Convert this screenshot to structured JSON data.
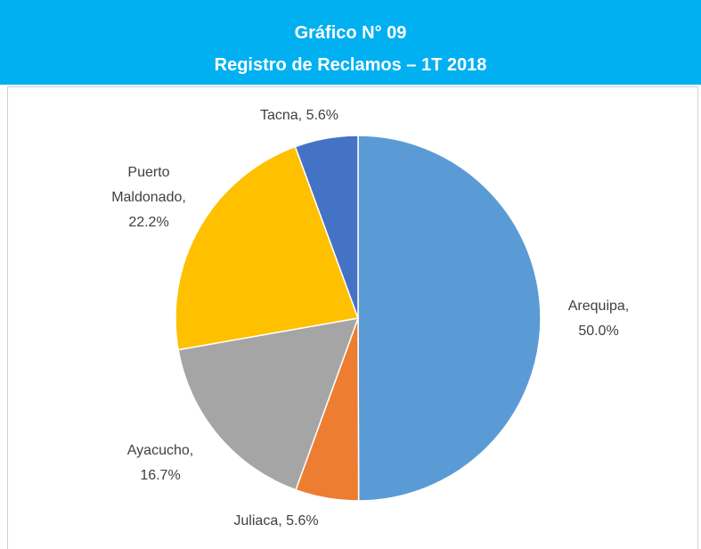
{
  "chart_data": {
    "type": "pie",
    "title": "Gráfico N° 09",
    "subtitle": "Registro de Reclamos – 1T 2018",
    "categories": [
      "Arequipa",
      "Juliaca",
      "Ayacucho",
      "Puerto Maldonado",
      "Tacna"
    ],
    "values": [
      50.0,
      5.6,
      16.7,
      22.2,
      5.6
    ],
    "value_labels": [
      "50.0%",
      "5.6%",
      "16.7%",
      "22.2%",
      "5.6%"
    ],
    "colors": [
      "#5b9bd5",
      "#ed7d31",
      "#a5a5a5",
      "#ffc000",
      "#4472c4"
    ]
  }
}
